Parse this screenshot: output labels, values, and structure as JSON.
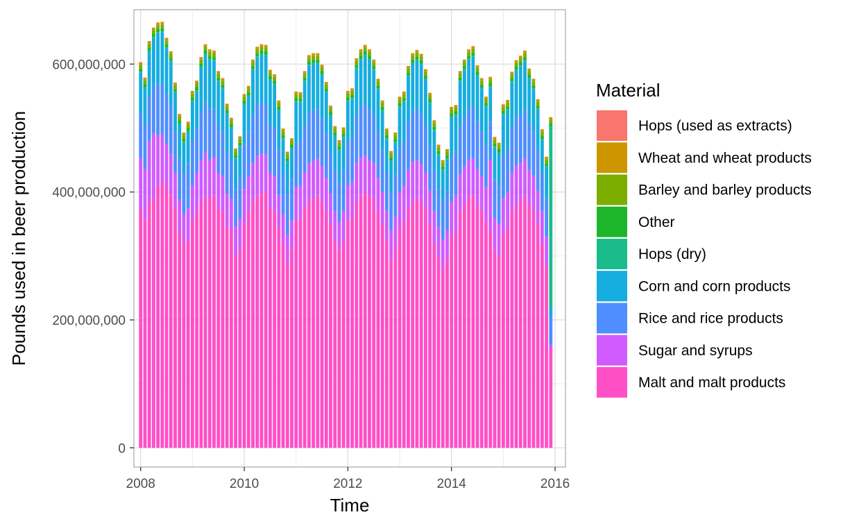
{
  "chart_data": {
    "type": "bar",
    "stacked": true,
    "title": "",
    "xlabel": "Time",
    "ylabel": "Pounds used in beer production",
    "xlim": [
      2007.87,
      2016.2
    ],
    "ylim": [
      -30000000,
      685000000
    ],
    "x_ticks": [
      {
        "value": 2008,
        "label": "2008"
      },
      {
        "value": 2010,
        "label": "2010"
      },
      {
        "value": 2012,
        "label": "2012"
      },
      {
        "value": 2014,
        "label": "2014"
      },
      {
        "value": 2016,
        "label": "2016"
      }
    ],
    "y_ticks": [
      {
        "value": 0,
        "label": "0"
      },
      {
        "value": 200000000,
        "label": "200,000,000"
      },
      {
        "value": 400000000,
        "label": "400,000,000"
      },
      {
        "value": 600000000,
        "label": "600,000,000"
      }
    ],
    "grid": true,
    "legend": {
      "title": "Material",
      "position": "right"
    },
    "bars_start": "2008-01",
    "bar_interval": "month",
    "stack_order": [
      "Malt and malt products",
      "Sugar and syrups",
      "Rice and rice products",
      "Corn and corn products",
      "Hops (dry)",
      "Other",
      "Barley and barley products",
      "Wheat and wheat products",
      "Hops (used as extracts)"
    ],
    "series": [
      {
        "name": "Hops (used as extracts)",
        "color": "#F8766D",
        "values": [
          100000,
          100000,
          100000,
          100000,
          100000,
          100000,
          100000,
          100000,
          100000,
          100000,
          100000,
          100000,
          100000,
          100000,
          100000,
          100000,
          100000,
          100000,
          100000,
          100000,
          100000,
          100000,
          100000,
          100000,
          100000,
          100000,
          100000,
          100000,
          100000,
          100000,
          100000,
          100000,
          100000,
          100000,
          100000,
          100000,
          100000,
          100000,
          100000,
          100000,
          100000,
          100000,
          100000,
          100000,
          100000,
          100000,
          100000,
          100000,
          100000,
          100000,
          100000,
          100000,
          100000,
          100000,
          100000,
          100000,
          100000,
          100000,
          100000,
          100000,
          100000,
          100000,
          100000,
          100000,
          100000,
          100000,
          100000,
          100000,
          100000,
          100000,
          100000,
          100000,
          100000,
          100000,
          100000,
          100000,
          100000,
          100000,
          100000,
          100000,
          100000,
          100000,
          100000,
          100000,
          100000,
          100000,
          100000,
          100000,
          100000,
          100000,
          100000,
          100000,
          100000,
          100000,
          100000,
          100000
        ]
      },
      {
        "name": "Wheat and wheat products",
        "color": "#CD9600",
        "values": [
          4000000,
          4000000,
          4000000,
          4000000,
          4000000,
          4000000,
          4000000,
          4000000,
          4000000,
          4000000,
          4000000,
          4000000,
          4000000,
          4000000,
          4000000,
          4000000,
          4000000,
          4000000,
          4000000,
          4000000,
          4000000,
          4000000,
          4000000,
          4000000,
          4000000,
          4000000,
          4000000,
          4000000,
          4000000,
          4000000,
          4000000,
          4000000,
          4000000,
          4000000,
          4000000,
          4000000,
          4000000,
          4000000,
          4000000,
          4000000,
          4000000,
          4000000,
          4000000,
          4000000,
          4000000,
          4000000,
          4000000,
          4000000,
          4000000,
          4000000,
          4000000,
          4000000,
          4000000,
          4000000,
          4000000,
          4000000,
          4000000,
          4000000,
          4000000,
          4000000,
          4000000,
          4000000,
          4000000,
          4000000,
          4000000,
          4000000,
          4000000,
          4000000,
          4000000,
          4000000,
          4000000,
          4000000,
          4000000,
          4000000,
          4000000,
          4000000,
          4000000,
          4000000,
          4000000,
          4000000,
          4000000,
          4000000,
          4000000,
          4000000,
          4000000,
          4000000,
          4000000,
          4000000,
          4000000,
          4000000,
          4000000,
          4000000,
          4000000,
          4000000,
          4000000,
          4000000
        ]
      },
      {
        "name": "Barley and barley products",
        "color": "#7CAE00",
        "values": [
          6000000,
          6000000,
          6000000,
          6000000,
          6000000,
          6000000,
          6000000,
          6000000,
          6000000,
          6000000,
          6000000,
          6000000,
          6000000,
          6000000,
          6000000,
          6000000,
          6000000,
          6000000,
          6000000,
          6000000,
          6000000,
          6000000,
          6000000,
          6000000,
          6000000,
          6000000,
          6000000,
          6000000,
          6000000,
          6000000,
          6000000,
          6000000,
          6000000,
          6000000,
          6000000,
          6000000,
          6000000,
          6000000,
          6000000,
          6000000,
          6000000,
          6000000,
          6000000,
          6000000,
          6000000,
          6000000,
          6000000,
          6000000,
          6000000,
          6000000,
          6000000,
          6000000,
          6000000,
          6000000,
          6000000,
          6000000,
          6000000,
          6000000,
          6000000,
          6000000,
          6000000,
          6000000,
          6000000,
          6000000,
          6000000,
          6000000,
          6000000,
          6000000,
          6000000,
          6000000,
          6000000,
          6000000,
          6000000,
          6000000,
          6000000,
          6000000,
          6000000,
          6000000,
          6000000,
          6000000,
          6000000,
          6000000,
          6000000,
          6000000,
          6000000,
          6000000,
          6000000,
          6000000,
          6000000,
          6000000,
          6000000,
          6000000,
          6000000,
          6000000,
          6000000,
          6000000
        ]
      },
      {
        "name": "Other",
        "color": "#1DB62B",
        "values": [
          5000000,
          5000000,
          5000000,
          5000000,
          5000000,
          5000000,
          5000000,
          5000000,
          5000000,
          5000000,
          5000000,
          5000000,
          5000000,
          5000000,
          5000000,
          5000000,
          5000000,
          5000000,
          5000000,
          5000000,
          5000000,
          5000000,
          5000000,
          5000000,
          5000000,
          5000000,
          5000000,
          5000000,
          5000000,
          5000000,
          5000000,
          5000000,
          5000000,
          5000000,
          5000000,
          5000000,
          5000000,
          5000000,
          5000000,
          5000000,
          5000000,
          5000000,
          5000000,
          5000000,
          5000000,
          5000000,
          5000000,
          5000000,
          5000000,
          5000000,
          5000000,
          5000000,
          5000000,
          5000000,
          5000000,
          5000000,
          5000000,
          5000000,
          5000000,
          5000000,
          5000000,
          5000000,
          5000000,
          5000000,
          5000000,
          5000000,
          5000000,
          5000000,
          5000000,
          5000000,
          5000000,
          5000000,
          5000000,
          5000000,
          5000000,
          5000000,
          5000000,
          5000000,
          5000000,
          5000000,
          5000000,
          5000000,
          5000000,
          5000000,
          5000000,
          5000000,
          5000000,
          5000000,
          5000000,
          5000000,
          5000000,
          5000000,
          5000000,
          5000000,
          5000000,
          5000000
        ]
      },
      {
        "name": "Hops (dry)",
        "color": "#1ABC8C",
        "values": [
          1000000,
          1000000,
          1000000,
          1000000,
          1000000,
          1000000,
          1000000,
          1000000,
          1000000,
          1000000,
          1000000,
          1000000,
          1000000,
          1000000,
          1000000,
          1000000,
          1000000,
          1000000,
          1000000,
          1000000,
          1000000,
          1000000,
          1000000,
          1000000,
          1000000,
          1000000,
          1000000,
          1000000,
          1000000,
          1000000,
          1000000,
          1000000,
          1000000,
          1000000,
          1000000,
          1000000,
          1000000,
          1000000,
          1000000,
          1000000,
          1000000,
          1000000,
          1000000,
          1000000,
          1000000,
          1000000,
          1000000,
          1000000,
          1000000,
          1000000,
          1000000,
          1000000,
          1000000,
          1000000,
          1000000,
          1000000,
          1000000,
          1000000,
          1000000,
          1000000,
          1000000,
          1000000,
          1000000,
          1000000,
          1000000,
          1000000,
          1000000,
          1000000,
          1000000,
          1000000,
          1000000,
          1000000,
          1000000,
          1000000,
          1000000,
          1000000,
          1000000,
          1000000,
          1000000,
          1000000,
          1000000,
          1000000,
          1000000,
          1000000,
          1000000,
          1000000,
          1000000,
          1000000,
          1000000,
          1000000,
          1000000,
          1000000,
          1000000,
          1000000,
          1000000,
          282000000
        ]
      },
      {
        "name": "Corn and corn products",
        "color": "#16ADE0",
        "values": [
          64000000,
          57000000,
          70000000,
          74000000,
          80000000,
          80000000,
          72000000,
          69000000,
          60000000,
          54000000,
          47000000,
          49000000,
          62000000,
          58000000,
          70000000,
          75000000,
          77000000,
          75000000,
          68000000,
          67000000,
          60000000,
          52000000,
          47000000,
          49000000,
          62000000,
          55000000,
          71000000,
          74000000,
          75000000,
          76000000,
          70000000,
          68000000,
          62000000,
          53000000,
          49000000,
          48000000,
          64000000,
          60000000,
          68000000,
          73000000,
          73000000,
          71000000,
          68000000,
          64000000,
          56000000,
          52000000,
          50000000,
          50000000,
          62000000,
          61000000,
          73000000,
          72000000,
          77000000,
          77000000,
          71000000,
          67000000,
          62000000,
          53000000,
          48000000,
          50000000,
          63000000,
          61000000,
          71000000,
          74000000,
          76000000,
          77000000,
          71000000,
          67000000,
          61000000,
          53000000,
          49000000,
          49000000,
          62000000,
          57000000,
          70000000,
          73000000,
          77000000,
          79000000,
          71000000,
          67000000,
          61000000,
          54000000,
          50000000,
          51000000,
          63000000,
          60000000,
          70000000,
          73000000,
          77000000,
          77000000,
          70000000,
          66000000,
          62000000,
          52000000,
          49000000,
          14000000
        ]
      },
      {
        "name": "Rice and rice products",
        "color": "#4F8EFF",
        "values": [
          70000000,
          70000000,
          70000000,
          75000000,
          80000000,
          80000000,
          78000000,
          75000000,
          65000000,
          65000000,
          65000000,
          70000000,
          70000000,
          70000000,
          75000000,
          78000000,
          80000000,
          75000000,
          75000000,
          70000000,
          65000000,
          60000000,
          60000000,
          65000000,
          70000000,
          70000000,
          75000000,
          80000000,
          80000000,
          80000000,
          75000000,
          75000000,
          70000000,
          65000000,
          65000000,
          65000000,
          70000000,
          70000000,
          75000000,
          80000000,
          80000000,
          78000000,
          75000000,
          70000000,
          65000000,
          65000000,
          62000000,
          65000000,
          70000000,
          70000000,
          75000000,
          80000000,
          80000000,
          80000000,
          75000000,
          72000000,
          65000000,
          60000000,
          60000000,
          65000000,
          70000000,
          70000000,
          75000000,
          80000000,
          80000000,
          80000000,
          75000000,
          70000000,
          65000000,
          60000000,
          60000000,
          62000000,
          70000000,
          68000000,
          75000000,
          78000000,
          80000000,
          80000000,
          75000000,
          70000000,
          65000000,
          60000000,
          60000000,
          60000000,
          68000000,
          68000000,
          72000000,
          75000000,
          75000000,
          75000000,
          72000000,
          70000000,
          65000000,
          60000000,
          60000000,
          45000000
        ]
      },
      {
        "name": "Sugar and syrups",
        "color": "#D05BFF",
        "values": [
          80000000,
          80000000,
          95000000,
          100000000,
          80000000,
          75000000,
          65000000,
          65000000,
          55000000,
          50000000,
          45000000,
          50000000,
          55000000,
          60000000,
          65000000,
          70000000,
          60000000,
          60000000,
          55000000,
          55000000,
          52000000,
          48000000,
          45000000,
          47000000,
          55000000,
          55000000,
          60000000,
          62000000,
          60000000,
          58000000,
          55000000,
          55000000,
          50000000,
          45000000,
          43000000,
          45000000,
          52000000,
          50000000,
          55000000,
          60000000,
          58000000,
          57000000,
          55000000,
          52000000,
          48000000,
          45000000,
          43000000,
          45000000,
          55000000,
          55000000,
          60000000,
          60000000,
          57000000,
          55000000,
          55000000,
          52000000,
          50000000,
          45000000,
          45000000,
          47000000,
          55000000,
          55000000,
          60000000,
          62000000,
          60000000,
          58000000,
          55000000,
          52000000,
          50000000,
          45000000,
          45000000,
          45000000,
          55000000,
          55000000,
          58000000,
          60000000,
          60000000,
          58000000,
          56000000,
          55000000,
          52000000,
          110000000,
          50000000,
          50000000,
          55000000,
          55000000,
          60000000,
          62000000,
          60000000,
          58000000,
          55000000,
          55000000,
          52000000,
          50000000,
          45000000,
          6000000
        ]
      },
      {
        "name": "Malt and malt products",
        "color": "#FF4FC6",
        "values": [
          373000000,
          356000000,
          385000000,
          392000000,
          409000000,
          415000000,
          410000000,
          395000000,
          375000000,
          337000000,
          320000000,
          325000000,
          355000000,
          370000000,
          385000000,
          392000000,
          390000000,
          395000000,
          375000000,
          370000000,
          345000000,
          340000000,
          300000000,
          310000000,
          350000000,
          370000000,
          385000000,
          395000000,
          400000000,
          400000000,
          375000000,
          370000000,
          345000000,
          320000000,
          290000000,
          310000000,
          355000000,
          360000000,
          375000000,
          385000000,
          390000000,
          395000000,
          385000000,
          370000000,
          350000000,
          325000000,
          310000000,
          325000000,
          355000000,
          360000000,
          385000000,
          395000000,
          400000000,
          395000000,
          390000000,
          370000000,
          350000000,
          325000000,
          295000000,
          315000000,
          345000000,
          355000000,
          375000000,
          385000000,
          390000000,
          385000000,
          375000000,
          350000000,
          320000000,
          300000000,
          280000000,
          295000000,
          330000000,
          340000000,
          370000000,
          380000000,
          390000000,
          395000000,
          380000000,
          370000000,
          355000000,
          340000000,
          310000000,
          300000000,
          335000000,
          345000000,
          370000000,
          380000000,
          385000000,
          395000000,
          380000000,
          370000000,
          350000000,
          320000000,
          285000000,
          155000000
        ]
      }
    ]
  }
}
